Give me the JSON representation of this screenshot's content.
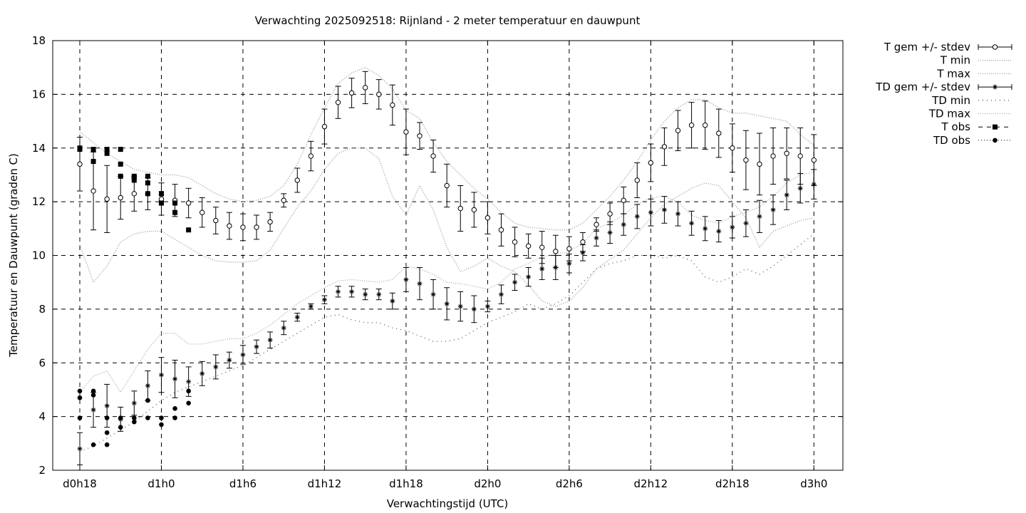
{
  "chart_data": {
    "type": "line",
    "title": "Verwachting 2025092518: Rijnland - 2 meter temperatuur en dauwpunt",
    "xlabel": "Verwachtingstijd (UTC)",
    "ylabel": "Temperatuur en Dauwpunt (graden C)",
    "xlim": [
      18,
      75
    ],
    "ylim": [
      2,
      18
    ],
    "x_unit": "hours since d0h0",
    "x_ticks": [
      {
        "value": 18,
        "label": "d0h18"
      },
      {
        "value": 24,
        "label": "d1h0"
      },
      {
        "value": 30,
        "label": "d1h6"
      },
      {
        "value": 36,
        "label": "d1h12"
      },
      {
        "value": 42,
        "label": "d1h18"
      },
      {
        "value": 48,
        "label": "d2h0"
      },
      {
        "value": 54,
        "label": "d2h6"
      },
      {
        "value": 60,
        "label": "d2h12"
      },
      {
        "value": 66,
        "label": "d2h18"
      },
      {
        "value": 72,
        "label": "d3h0"
      }
    ],
    "y_ticks": [
      2,
      4,
      6,
      8,
      10,
      12,
      14,
      16,
      18
    ],
    "grid": true,
    "legend_position": "outside-right",
    "x": [
      18,
      19,
      20,
      21,
      22,
      23,
      24,
      25,
      26,
      27,
      28,
      29,
      30,
      31,
      32,
      33,
      34,
      35,
      36,
      37,
      38,
      39,
      40,
      41,
      42,
      43,
      44,
      45,
      46,
      47,
      48,
      49,
      50,
      51,
      52,
      53,
      54,
      55,
      56,
      57,
      58,
      59,
      60,
      61,
      62,
      63,
      64,
      65,
      66,
      67,
      68,
      69,
      70,
      71,
      72
    ],
    "series": [
      {
        "name": "T gem +/- stdev",
        "style": "errorbar-open-circle",
        "values": [
          13.4,
          12.4,
          12.1,
          12.15,
          12.3,
          12.3,
          12.1,
          12.05,
          11.95,
          11.6,
          11.3,
          11.1,
          11.05,
          11.05,
          11.25,
          12.05,
          12.8,
          13.7,
          14.8,
          15.7,
          16.05,
          16.25,
          16.0,
          15.6,
          14.6,
          14.45,
          13.7,
          12.6,
          11.75,
          11.7,
          11.4,
          10.95,
          10.5,
          10.35,
          10.3,
          10.15,
          10.25,
          10.5,
          11.15,
          11.55,
          12.05,
          12.8,
          13.45,
          14.05,
          14.65,
          14.85,
          14.85,
          14.55,
          14.0,
          13.55,
          13.4,
          13.7,
          13.8,
          13.7,
          13.55
        ],
        "stdev": [
          1.0,
          1.45,
          1.25,
          0.8,
          0.65,
          0.6,
          0.6,
          0.6,
          0.55,
          0.55,
          0.5,
          0.5,
          0.5,
          0.45,
          0.35,
          0.25,
          0.45,
          0.55,
          0.65,
          0.6,
          0.55,
          0.6,
          0.55,
          0.75,
          0.85,
          0.5,
          0.6,
          0.8,
          0.85,
          0.65,
          0.6,
          0.6,
          0.55,
          0.45,
          0.6,
          0.6,
          0.45,
          0.35,
          0.25,
          0.4,
          0.5,
          0.65,
          0.7,
          0.7,
          0.75,
          0.85,
          0.9,
          0.9,
          0.9,
          1.1,
          1.15,
          1.05,
          0.95,
          1.05,
          0.95
        ]
      },
      {
        "name": "T min",
        "style": "dotted",
        "values": [
          10.4,
          9.0,
          9.6,
          10.5,
          10.8,
          10.9,
          10.9,
          10.6,
          10.3,
          10.0,
          9.8,
          9.75,
          9.75,
          9.8,
          10.2,
          11.0,
          11.8,
          12.4,
          13.2,
          13.8,
          14.0,
          14.0,
          13.6,
          12.2,
          11.5,
          12.6,
          11.7,
          10.3,
          9.4,
          9.6,
          9.9,
          9.6,
          9.4,
          8.9,
          8.3,
          8.1,
          8.3,
          8.8,
          9.5,
          9.85,
          10.2,
          10.8,
          11.4,
          11.9,
          12.2,
          12.5,
          12.7,
          12.6,
          12.0,
          11.4,
          10.3,
          10.9,
          11.1,
          11.3,
          11.4
        ]
      },
      {
        "name": "T max",
        "style": "dotted",
        "values": [
          14.6,
          14.2,
          13.8,
          13.5,
          13.2,
          13.1,
          13.0,
          13.0,
          12.9,
          12.6,
          12.3,
          12.1,
          12.0,
          12.05,
          12.2,
          12.6,
          13.4,
          14.5,
          15.5,
          16.4,
          16.8,
          17.0,
          16.7,
          16.2,
          15.4,
          15.1,
          14.2,
          13.5,
          13.0,
          12.5,
          12.1,
          11.6,
          11.2,
          11.05,
          11.0,
          10.95,
          10.95,
          11.2,
          11.7,
          12.2,
          12.8,
          13.5,
          14.3,
          15.0,
          15.5,
          15.8,
          15.8,
          15.5,
          15.3,
          15.3,
          15.2,
          15.1,
          15.0,
          14.5,
          14.1
        ]
      },
      {
        "name": "TD gem +/- stdev",
        "style": "errorbar-star",
        "values": [
          2.8,
          4.25,
          4.4,
          3.9,
          4.5,
          5.15,
          5.55,
          5.4,
          5.3,
          5.6,
          5.85,
          6.1,
          6.3,
          6.6,
          6.85,
          7.3,
          7.7,
          8.1,
          8.35,
          8.65,
          8.65,
          8.55,
          8.55,
          8.3,
          9.1,
          8.95,
          8.55,
          8.2,
          8.1,
          8.0,
          8.1,
          8.55,
          9.0,
          9.2,
          9.5,
          9.55,
          9.7,
          10.1,
          10.65,
          10.85,
          11.15,
          11.45,
          11.6,
          11.7,
          11.55,
          11.2,
          11.0,
          10.9,
          11.05,
          11.2,
          11.45,
          11.7,
          12.25,
          12.5,
          12.65
        ]
      },
      {
        "name": "TD min",
        "style": "dotted",
        "values": [
          2.7,
          2.9,
          3.2,
          3.5,
          3.8,
          4.2,
          4.6,
          4.9,
          5.1,
          5.3,
          5.5,
          5.7,
          5.9,
          6.2,
          6.5,
          6.8,
          7.1,
          7.4,
          7.7,
          7.8,
          7.6,
          7.5,
          7.5,
          7.3,
          7.2,
          7.0,
          6.8,
          6.8,
          6.9,
          7.2,
          7.5,
          7.7,
          7.9,
          8.2,
          8.0,
          8.2,
          8.5,
          9.0,
          9.5,
          9.7,
          9.8,
          10.0,
          10.0,
          9.9,
          10.0,
          9.8,
          9.2,
          9.0,
          9.2,
          9.5,
          9.3,
          9.6,
          10.0,
          10.4,
          10.8
        ]
      },
      {
        "name": "TD max",
        "style": "dotted",
        "values": [
          4.9,
          5.5,
          5.7,
          4.9,
          5.7,
          6.5,
          7.1,
          7.1,
          6.7,
          6.7,
          6.8,
          6.9,
          6.9,
          7.1,
          7.4,
          7.8,
          8.2,
          8.5,
          8.8,
          9.05,
          9.1,
          9.05,
          9.0,
          9.1,
          9.6,
          9.5,
          9.3,
          9.0,
          8.95,
          8.85,
          8.75,
          9.0,
          9.5,
          9.7,
          9.95,
          10.05,
          10.15,
          10.45,
          11.0,
          11.2,
          11.5,
          11.9,
          12.15,
          12.2,
          12.0,
          11.5,
          11.3,
          11.2,
          11.45,
          11.6,
          11.8,
          12.2,
          12.7,
          13.0,
          13.1
        ]
      }
    ],
    "td_stdev": [
      0.6,
      0.65,
      0.8,
      0.45,
      0.45,
      0.55,
      0.65,
      0.7,
      0.55,
      0.45,
      0.45,
      0.3,
      0.35,
      0.25,
      0.3,
      0.25,
      0.15,
      0.1,
      0.15,
      0.2,
      0.2,
      0.2,
      0.2,
      0.3,
      0.45,
      0.6,
      0.55,
      0.6,
      0.55,
      0.5,
      0.2,
      0.35,
      0.3,
      0.35,
      0.4,
      0.45,
      0.35,
      0.3,
      0.3,
      0.4,
      0.4,
      0.45,
      0.5,
      0.5,
      0.45,
      0.45,
      0.45,
      0.4,
      0.4,
      0.5,
      0.6,
      0.55,
      0.55,
      0.55,
      0.55
    ],
    "observations": [
      {
        "name": "T obs",
        "style": "filled-square",
        "x": [
          18,
          18,
          19,
          19,
          20,
          20,
          21,
          21,
          21,
          22,
          22,
          22,
          23,
          23,
          23,
          24,
          24,
          24,
          25,
          25,
          26
        ],
        "values": [
          14.0,
          13.95,
          13.95,
          13.5,
          13.95,
          13.8,
          13.95,
          13.4,
          12.95,
          12.95,
          12.9,
          12.8,
          12.95,
          12.7,
          12.3,
          12.3,
          12.3,
          11.95,
          11.95,
          11.6,
          10.95
        ]
      },
      {
        "name": "TD obs",
        "style": "filled-circle",
        "x": [
          18,
          18,
          18,
          19,
          19,
          19,
          20,
          20,
          20,
          21,
          21,
          22,
          22,
          23,
          23,
          24,
          24,
          25,
          25,
          26,
          26
        ],
        "values": [
          4.95,
          4.7,
          3.95,
          4.95,
          4.8,
          2.95,
          3.95,
          3.4,
          2.95,
          3.95,
          3.6,
          3.95,
          3.8,
          4.6,
          3.95,
          3.95,
          3.7,
          4.3,
          3.95,
          4.95,
          4.5
        ]
      }
    ]
  }
}
